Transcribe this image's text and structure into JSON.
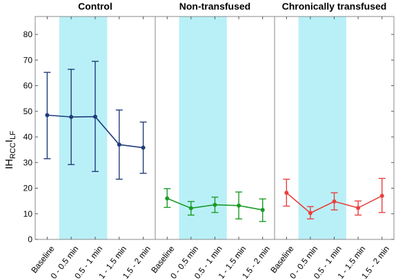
{
  "chart_data": {
    "type": "line",
    "ylabel": "IH",
    "ylabel_subscript": "RCC",
    "ylabel_suffix": "I",
    "ylabel_subscript2": "LF",
    "ylim": [
      0,
      87
    ],
    "yticks": [
      0,
      10,
      20,
      30,
      40,
      50,
      60,
      70,
      80
    ],
    "grid": false,
    "categories": [
      "Baseline",
      "0 - 0.5 min",
      "0.5 - 1 min",
      "1 - 1.5 min",
      "1.5 - 2 min"
    ],
    "highlight_categories": [
      1,
      2
    ],
    "highlight_color": "#b9f0f7",
    "panels": [
      {
        "title": "Control",
        "color": "#1f3b7a",
        "values": [
          48.5,
          47.8,
          47.9,
          37.0,
          35.8
        ],
        "err_low": [
          31.5,
          29.2,
          26.5,
          23.5,
          25.8
        ],
        "err_high": [
          65.2,
          66.4,
          69.5,
          50.5,
          45.8
        ]
      },
      {
        "title": "Non-transfused",
        "color": "#1a9a26",
        "values": [
          16.0,
          12.2,
          13.5,
          13.2,
          11.5
        ],
        "err_low": [
          12.5,
          9.5,
          10.5,
          8.0,
          7.0
        ],
        "err_high": [
          19.8,
          14.8,
          16.5,
          18.5,
          15.8
        ]
      },
      {
        "title": "Chronically transfused",
        "color": "#e8403e",
        "values": [
          18.2,
          10.3,
          14.8,
          12.3,
          17.0
        ],
        "err_low": [
          13.0,
          8.0,
          11.5,
          9.5,
          10.5
        ],
        "err_high": [
          23.5,
          12.8,
          18.2,
          15.0,
          23.8
        ]
      }
    ]
  }
}
